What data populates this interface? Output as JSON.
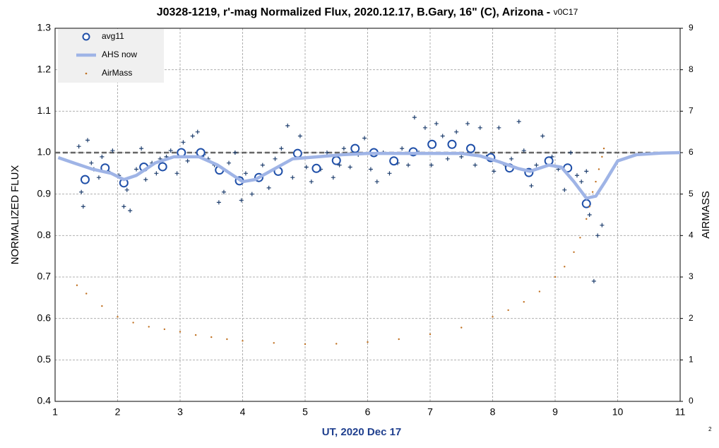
{
  "chart_data": {
    "type": "scatter",
    "title": "J0328-1219, r'-mag Normalized Flux, 2020.12.17, B.Gary, 16\" (C), Arizona - ",
    "title_suffix": "v0C17",
    "x_label": "UT, 2020 Dec 17",
    "y_label": "NORMALIZED FLUX",
    "y2_label": "AIRMASS",
    "footnote": "2",
    "xlim": [
      1,
      11
    ],
    "xticks": [
      1,
      2,
      3,
      4,
      5,
      6,
      7,
      8,
      9,
      10,
      11
    ],
    "ylim": [
      0.4,
      1.3
    ],
    "yticks": [
      0.4,
      0.5,
      0.6,
      0.7,
      0.8,
      0.9,
      {
        "value": 1,
        "label": "1.0"
      },
      1.1,
      1.2,
      1.3
    ],
    "y2lim": [
      0,
      9
    ],
    "y2ticks": [
      0,
      1,
      2,
      3,
      4,
      5,
      6,
      7,
      8,
      9
    ],
    "grid": true,
    "reference_line": 1,
    "legend": "upper left",
    "series": [
      {
        "style": "cross",
        "color": "#1f3f6e",
        "x": [
          1.38,
          1.42,
          1.45,
          1.52,
          1.58,
          1.62,
          1.7,
          1.75,
          1.85,
          1.92,
          2.02,
          2.1,
          2.15,
          2.2,
          2.3,
          2.38,
          2.45,
          2.55,
          2.62,
          2.68,
          2.78,
          2.85,
          2.95,
          3.05,
          3.12,
          3.2,
          3.28,
          3.38,
          3.45,
          3.55,
          3.62,
          3.7,
          3.78,
          3.88,
          3.98,
          4.05,
          4.15,
          4.22,
          4.32,
          4.42,
          4.52,
          4.62,
          4.72,
          4.8,
          4.92,
          5.02,
          5.1,
          5.25,
          5.35,
          5.45,
          5.55,
          5.62,
          5.72,
          5.85,
          5.95,
          6.05,
          6.15,
          6.25,
          6.35,
          6.48,
          6.55,
          6.65,
          6.75,
          6.82,
          6.92,
          7.02,
          7.1,
          7.2,
          7.28,
          7.42,
          7.5,
          7.6,
          7.72,
          7.8,
          7.9,
          8.02,
          8.1,
          8.2,
          8.3,
          8.42,
          8.5,
          8.62,
          8.7,
          8.8,
          8.95,
          9.05,
          9.15,
          9.25,
          9.35,
          9.42,
          9.5,
          9.55,
          9.62,
          9.68,
          9.75
        ],
        "values": [
          1.015,
          0.905,
          0.87,
          1.03,
          0.975,
          0.96,
          0.94,
          0.99,
          0.955,
          1.005,
          0.945,
          0.87,
          0.91,
          0.86,
          0.96,
          1.01,
          0.935,
          0.975,
          0.95,
          0.985,
          0.99,
          1.005,
          0.95,
          1.025,
          0.98,
          1.04,
          1.05,
          0.995,
          0.985,
          0.97,
          0.88,
          0.905,
          0.975,
          1.0,
          0.885,
          0.95,
          0.9,
          0.94,
          0.97,
          0.915,
          0.985,
          1.01,
          1.065,
          0.94,
          1.04,
          0.965,
          0.93,
          0.96,
          1.0,
          0.94,
          0.97,
          1.01,
          0.965,
          0.995,
          1.035,
          0.96,
          0.93,
          1.0,
          0.95,
          0.975,
          1.01,
          0.97,
          1.085,
          1.0,
          1.06,
          0.97,
          1.07,
          1.04,
          0.985,
          1.05,
          0.99,
          1.07,
          0.97,
          1.06,
          0.99,
          0.955,
          1.06,
          0.97,
          0.985,
          1.075,
          1.005,
          0.92,
          0.97,
          1.04,
          0.99,
          0.96,
          0.91,
          1.0,
          0.945,
          0.93,
          0.955,
          0.85,
          0.69,
          0.8,
          0.825
        ]
      },
      {
        "name": "avg11",
        "style": "circle",
        "color": "#1f4fa8",
        "x": [
          1.48,
          1.8,
          2.1,
          2.42,
          2.72,
          3.02,
          3.33,
          3.63,
          3.95,
          4.26,
          4.57,
          4.88,
          5.18,
          5.5,
          5.8,
          6.1,
          6.42,
          6.73,
          7.03,
          7.35,
          7.65,
          7.97,
          8.27,
          8.58,
          8.9,
          9.2,
          9.5
        ],
        "values": [
          0.935,
          0.963,
          0.927,
          0.965,
          0.966,
          1.0,
          1.0,
          0.958,
          0.932,
          0.94,
          0.955,
          0.998,
          0.962,
          0.981,
          1.01,
          1.0,
          0.98,
          1.002,
          1.02,
          1.02,
          1.01,
          0.988,
          0.963,
          0.952,
          0.98,
          0.963,
          0.877
        ]
      },
      {
        "name": "AHS now",
        "style": "line",
        "color": "#9fb4e6",
        "x": [
          1.05,
          1.3,
          1.6,
          1.9,
          2.1,
          2.3,
          2.6,
          2.9,
          3.1,
          3.3,
          3.6,
          3.8,
          4.0,
          4.2,
          4.5,
          4.8,
          5.2,
          5.6,
          6.0,
          6.5,
          7.0,
          7.5,
          7.8,
          8.1,
          8.4,
          8.6,
          8.9,
          9.1,
          9.3,
          9.5,
          9.65,
          9.8,
          10.0,
          10.3,
          10.7,
          11.0
        ],
        "values": [
          0.988,
          0.975,
          0.96,
          0.95,
          0.935,
          0.945,
          0.975,
          0.99,
          0.99,
          0.99,
          0.97,
          0.95,
          0.93,
          0.935,
          0.96,
          0.985,
          0.99,
          0.995,
          0.998,
          0.998,
          0.998,
          0.998,
          0.992,
          0.978,
          0.962,
          0.955,
          0.97,
          0.965,
          0.93,
          0.89,
          0.895,
          0.93,
          0.98,
          0.995,
          0.999,
          1.0
        ]
      },
      {
        "name": "AirMass",
        "style": "dot",
        "color": "#c07020",
        "axis": "y2",
        "x": [
          1.35,
          1.5,
          1.75,
          2.0,
          2.25,
          2.5,
          2.75,
          3.0,
          3.25,
          3.5,
          3.75,
          4.0,
          4.5,
          5.0,
          5.5,
          6.0,
          6.5,
          7.0,
          7.5,
          8.0,
          8.25,
          8.5,
          8.75,
          9.0,
          9.15,
          9.3,
          9.4,
          9.5,
          9.55,
          9.6,
          9.65,
          9.7,
          9.75,
          9.78
        ],
        "values": [
          2.8,
          2.6,
          2.3,
          2.04,
          1.9,
          1.8,
          1.74,
          1.68,
          1.6,
          1.55,
          1.5,
          1.46,
          1.41,
          1.38,
          1.39,
          1.43,
          1.5,
          1.62,
          1.78,
          2.04,
          2.2,
          2.4,
          2.65,
          3.0,
          3.25,
          3.6,
          3.95,
          4.4,
          4.7,
          5.05,
          5.3,
          5.6,
          5.9,
          6.1
        ]
      }
    ]
  }
}
